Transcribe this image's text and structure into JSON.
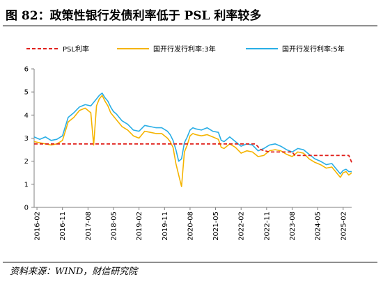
{
  "figure": {
    "title": "图 82：政策性银行发债利率低于 PSL 利率较多",
    "source": "资料来源：WIND，财信研究院"
  },
  "colors": {
    "psl": "#e0201b",
    "cdb3y": "#f5b400",
    "cdb5y": "#29aee6",
    "axis": "#7f7f7f",
    "rule": "#8f8f8f"
  },
  "chart_data": {
    "type": "line",
    "title": "",
    "xlabel": "",
    "ylabel": "",
    "ylim": [
      0,
      6
    ],
    "yticks": [
      "0",
      "1",
      "2",
      "3",
      "4",
      "5",
      "6"
    ],
    "xrange": [
      "2016-01",
      "2025-05"
    ],
    "xtick_labels": [
      "2016-02",
      "2016-11",
      "2017-08",
      "2018-05",
      "2019-02",
      "2019-11",
      "2020-08",
      "2021-05",
      "2022-02",
      "2022-11",
      "2023-08",
      "2024-05",
      "2025-02"
    ],
    "grid": false,
    "legend_position": "top",
    "series": [
      {
        "name": "PSL利率",
        "style": "dashed",
        "color": "#e0201b",
        "points": [
          [
            "2016-01",
            2.75
          ],
          [
            "2022-07",
            2.75
          ],
          [
            "2022-09",
            2.5
          ],
          [
            "2022-12",
            2.4
          ],
          [
            "2023-08",
            2.4
          ],
          [
            "2023-09",
            2.25
          ],
          [
            "2025-04",
            2.25
          ],
          [
            "2025-05",
            1.95
          ]
        ]
      },
      {
        "name": "国开行发行利率:3年",
        "style": "solid",
        "color": "#f5b400",
        "points": [
          [
            "2016-01",
            2.85
          ],
          [
            "2016-03",
            2.8
          ],
          [
            "2016-05",
            2.75
          ],
          [
            "2016-07",
            2.7
          ],
          [
            "2016-09",
            2.75
          ],
          [
            "2016-11",
            2.9
          ],
          [
            "2016-12",
            3.3
          ],
          [
            "2017-01",
            3.7
          ],
          [
            "2017-03",
            3.9
          ],
          [
            "2017-05",
            4.2
          ],
          [
            "2017-07",
            4.3
          ],
          [
            "2017-09",
            4.1
          ],
          [
            "2017-10",
            2.7
          ],
          [
            "2017-11",
            4.4
          ],
          [
            "2017-12",
            4.7
          ],
          [
            "2018-01",
            4.85
          ],
          [
            "2018-02",
            4.6
          ],
          [
            "2018-03",
            4.4
          ],
          [
            "2018-04",
            4.1
          ],
          [
            "2018-05",
            3.95
          ],
          [
            "2018-06",
            3.8
          ],
          [
            "2018-08",
            3.5
          ],
          [
            "2018-10",
            3.35
          ],
          [
            "2018-12",
            3.1
          ],
          [
            "2019-02",
            3.0
          ],
          [
            "2019-04",
            3.3
          ],
          [
            "2019-06",
            3.25
          ],
          [
            "2019-08",
            3.2
          ],
          [
            "2019-10",
            3.2
          ],
          [
            "2019-12",
            3.0
          ],
          [
            "2020-01",
            2.85
          ],
          [
            "2020-02",
            2.6
          ],
          [
            "2020-03",
            1.9
          ],
          [
            "2020-04",
            1.4
          ],
          [
            "2020-05",
            0.9
          ],
          [
            "2020-06",
            2.4
          ],
          [
            "2020-07",
            2.7
          ],
          [
            "2020-08",
            3.1
          ],
          [
            "2020-09",
            3.2
          ],
          [
            "2020-10",
            3.15
          ],
          [
            "2020-12",
            3.1
          ],
          [
            "2021-02",
            3.15
          ],
          [
            "2021-04",
            3.05
          ],
          [
            "2021-06",
            2.95
          ],
          [
            "2021-07",
            2.6
          ],
          [
            "2021-08",
            2.55
          ],
          [
            "2021-10",
            2.75
          ],
          [
            "2021-12",
            2.6
          ],
          [
            "2022-02",
            2.35
          ],
          [
            "2022-04",
            2.45
          ],
          [
            "2022-06",
            2.4
          ],
          [
            "2022-08",
            2.2
          ],
          [
            "2022-10",
            2.25
          ],
          [
            "2022-12",
            2.45
          ],
          [
            "2023-02",
            2.5
          ],
          [
            "2023-04",
            2.45
          ],
          [
            "2023-06",
            2.3
          ],
          [
            "2023-08",
            2.2
          ],
          [
            "2023-10",
            2.4
          ],
          [
            "2023-12",
            2.35
          ],
          [
            "2024-02",
            2.1
          ],
          [
            "2024-04",
            1.95
          ],
          [
            "2024-06",
            1.85
          ],
          [
            "2024-08",
            1.7
          ],
          [
            "2024-10",
            1.75
          ],
          [
            "2024-12",
            1.45
          ],
          [
            "2025-01",
            1.3
          ],
          [
            "2025-02",
            1.5
          ],
          [
            "2025-03",
            1.55
          ],
          [
            "2025-04",
            1.4
          ],
          [
            "2025-05",
            1.5
          ]
        ]
      },
      {
        "name": "国开行发行利率:5年",
        "style": "solid",
        "color": "#29aee6",
        "points": [
          [
            "2016-01",
            3.05
          ],
          [
            "2016-03",
            2.95
          ],
          [
            "2016-05",
            3.05
          ],
          [
            "2016-07",
            2.9
          ],
          [
            "2016-09",
            2.95
          ],
          [
            "2016-11",
            3.1
          ],
          [
            "2016-12",
            3.5
          ],
          [
            "2017-01",
            3.9
          ],
          [
            "2017-03",
            4.1
          ],
          [
            "2017-05",
            4.35
          ],
          [
            "2017-07",
            4.45
          ],
          [
            "2017-09",
            4.4
          ],
          [
            "2017-11",
            4.7
          ],
          [
            "2017-12",
            4.85
          ],
          [
            "2018-01",
            4.95
          ],
          [
            "2018-02",
            4.75
          ],
          [
            "2018-03",
            4.6
          ],
          [
            "2018-04",
            4.35
          ],
          [
            "2018-05",
            4.15
          ],
          [
            "2018-06",
            4.05
          ],
          [
            "2018-08",
            3.75
          ],
          [
            "2018-10",
            3.6
          ],
          [
            "2018-12",
            3.35
          ],
          [
            "2019-02",
            3.3
          ],
          [
            "2019-04",
            3.55
          ],
          [
            "2019-06",
            3.5
          ],
          [
            "2019-08",
            3.45
          ],
          [
            "2019-10",
            3.45
          ],
          [
            "2019-12",
            3.3
          ],
          [
            "2020-01",
            3.15
          ],
          [
            "2020-02",
            2.9
          ],
          [
            "2020-03",
            2.5
          ],
          [
            "2020-04",
            2.0
          ],
          [
            "2020-05",
            2.1
          ],
          [
            "2020-06",
            2.8
          ],
          [
            "2020-07",
            3.05
          ],
          [
            "2020-08",
            3.35
          ],
          [
            "2020-09",
            3.45
          ],
          [
            "2020-10",
            3.4
          ],
          [
            "2020-12",
            3.35
          ],
          [
            "2021-02",
            3.45
          ],
          [
            "2021-04",
            3.3
          ],
          [
            "2021-06",
            3.25
          ],
          [
            "2021-07",
            2.9
          ],
          [
            "2021-08",
            2.85
          ],
          [
            "2021-10",
            3.05
          ],
          [
            "2021-12",
            2.85
          ],
          [
            "2022-02",
            2.65
          ],
          [
            "2022-04",
            2.75
          ],
          [
            "2022-06",
            2.7
          ],
          [
            "2022-08",
            2.45
          ],
          [
            "2022-10",
            2.55
          ],
          [
            "2022-12",
            2.7
          ],
          [
            "2023-02",
            2.75
          ],
          [
            "2023-04",
            2.65
          ],
          [
            "2023-06",
            2.5
          ],
          [
            "2023-08",
            2.4
          ],
          [
            "2023-10",
            2.55
          ],
          [
            "2023-12",
            2.5
          ],
          [
            "2024-02",
            2.3
          ],
          [
            "2024-04",
            2.1
          ],
          [
            "2024-06",
            2.0
          ],
          [
            "2024-08",
            1.85
          ],
          [
            "2024-10",
            1.9
          ],
          [
            "2024-12",
            1.6
          ],
          [
            "2025-01",
            1.45
          ],
          [
            "2025-02",
            1.6
          ],
          [
            "2025-03",
            1.65
          ],
          [
            "2025-04",
            1.55
          ],
          [
            "2025-05",
            1.55
          ]
        ]
      }
    ]
  }
}
